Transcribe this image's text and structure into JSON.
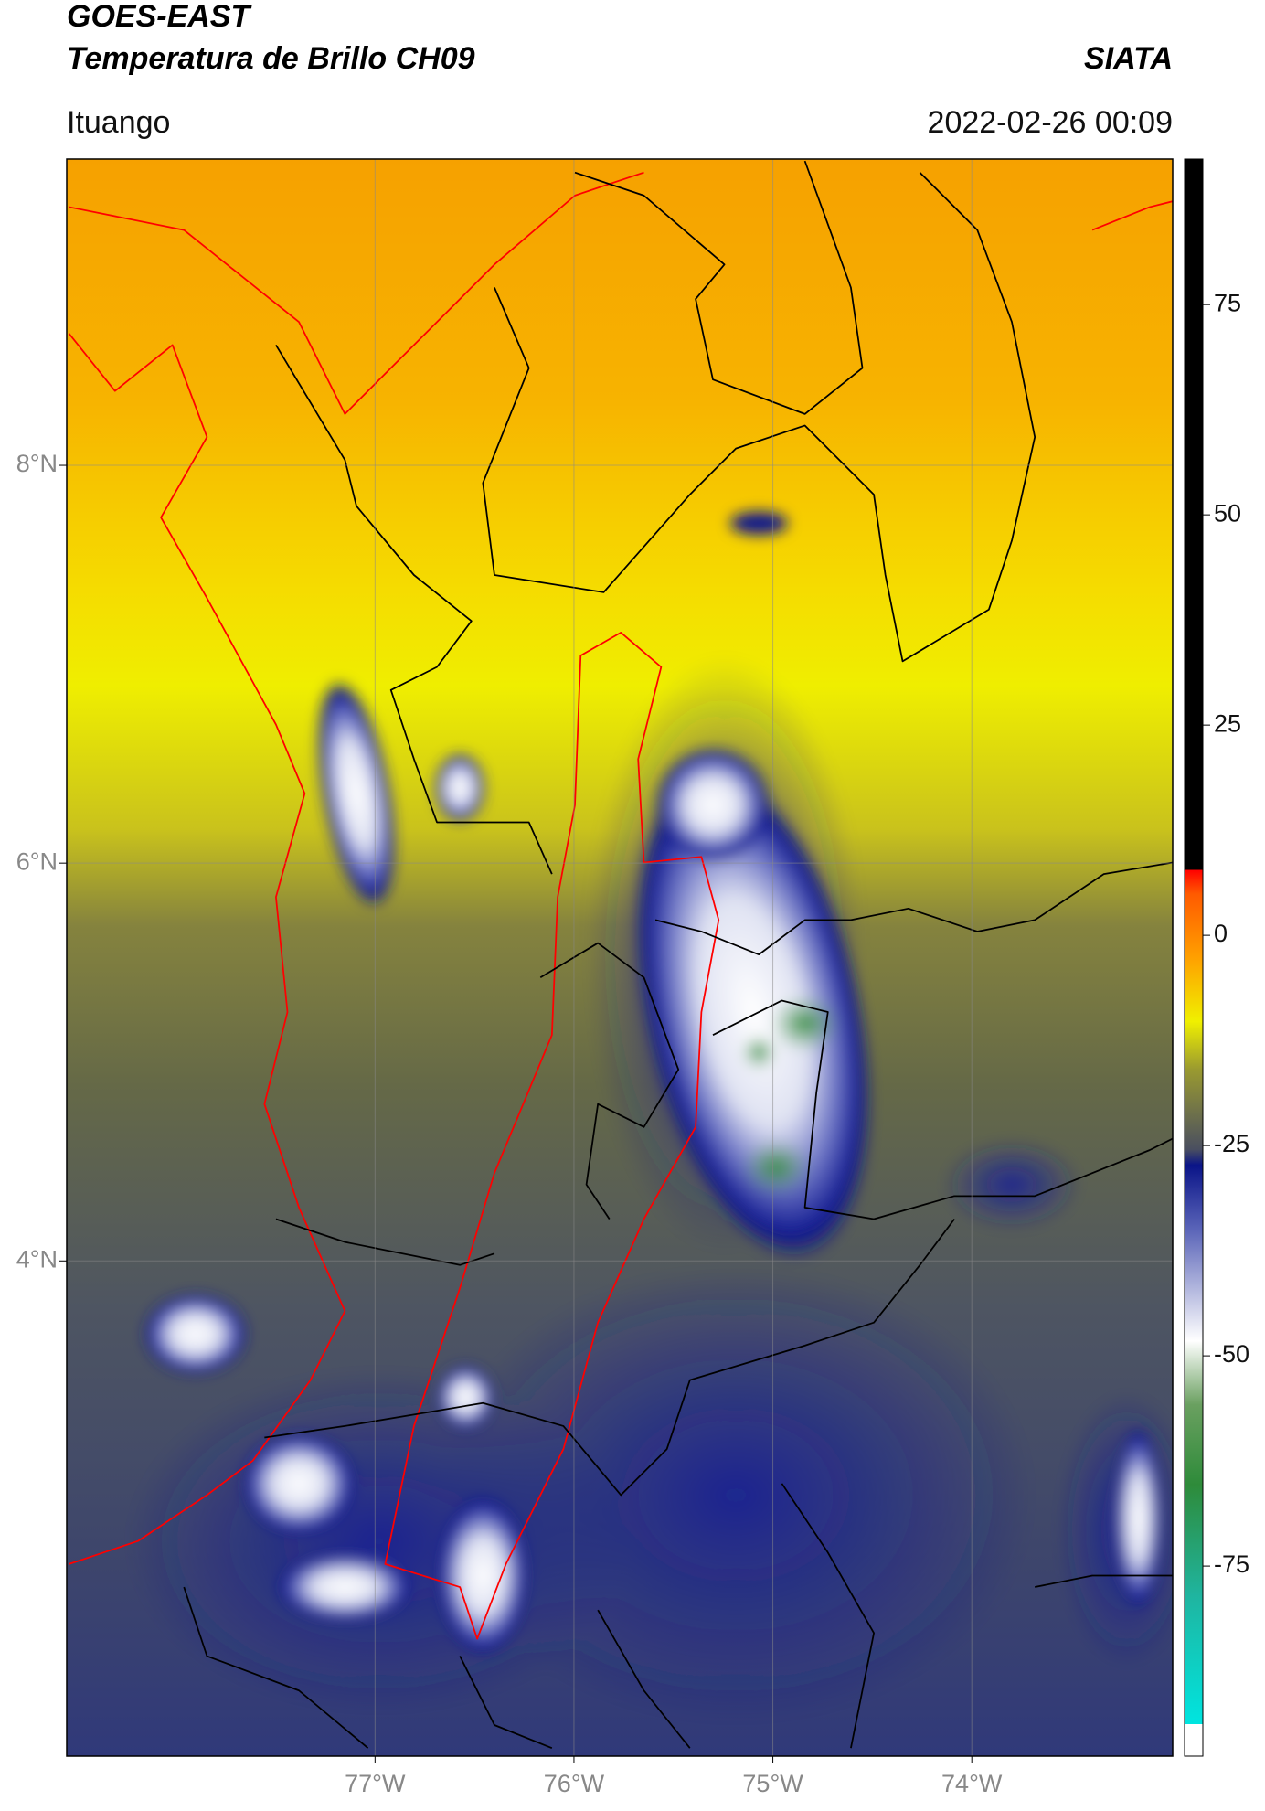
{
  "header": {
    "title": "GOES-EAST",
    "subtitle": "Temperatura de Brillo CH09",
    "brand": "SIATA",
    "location": "Ituango",
    "datetime": "2022-02-26 00:09"
  },
  "map": {
    "xlim": [
      -78.55,
      -72.99
    ],
    "ylim": [
      1.51,
      9.54
    ],
    "xticks": [
      {
        "value": -77,
        "label": "77°W"
      },
      {
        "value": -76,
        "label": "76°W"
      },
      {
        "value": -75,
        "label": "75°W"
      },
      {
        "value": -74,
        "label": "74°W"
      }
    ],
    "yticks": [
      {
        "value": 4,
        "label": "4°N"
      },
      {
        "value": 6,
        "label": "6°N"
      },
      {
        "value": 8,
        "label": "8°N"
      }
    ],
    "grid": true
  },
  "colorbar": {
    "clim": [
      -97.6,
      92.3
    ],
    "ticks": [
      75,
      50,
      25,
      0,
      -25,
      -50,
      -75
    ]
  }
}
